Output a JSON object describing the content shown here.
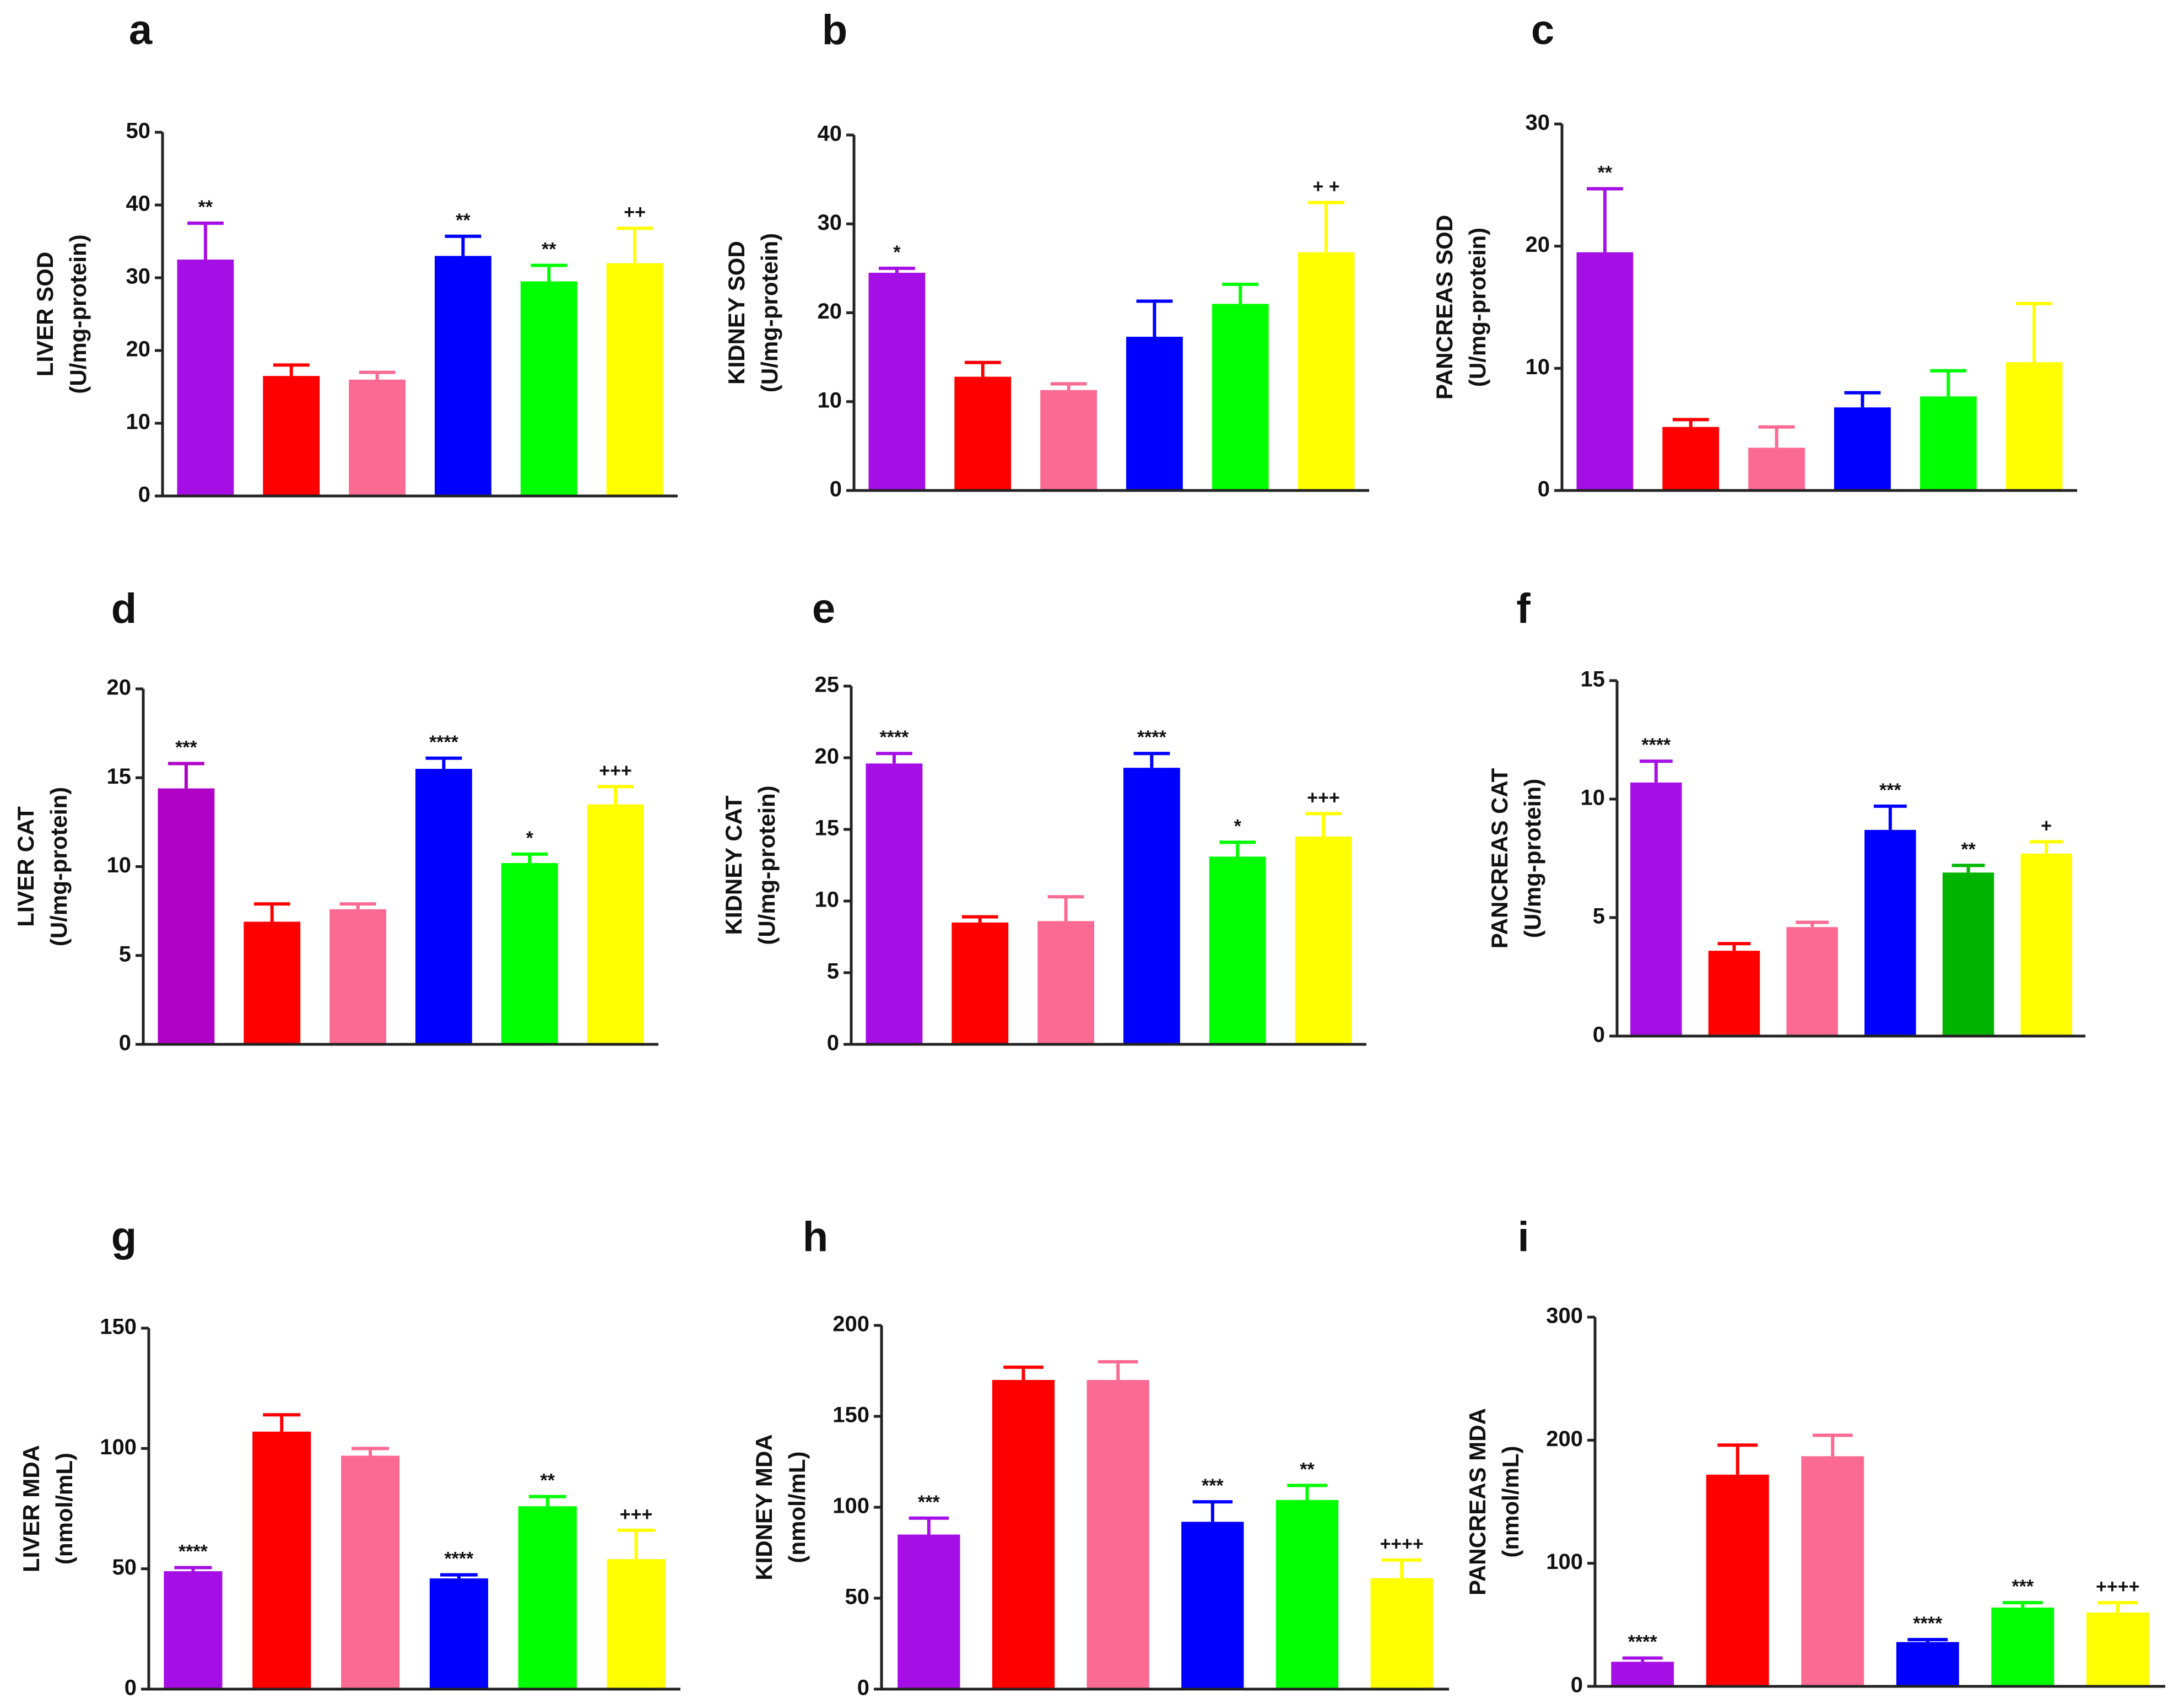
{
  "chart_data": [
    {
      "type": "bar",
      "panel": "a",
      "ylabel": [
        "LIVER SOD",
        "(U/mg-protein)"
      ],
      "ylim": [
        0,
        50
      ],
      "yticks": [
        0,
        10,
        20,
        30,
        40,
        50
      ],
      "values": [
        32.5,
        16.5,
        16.0,
        33.0,
        29.5,
        32.0
      ],
      "errors": [
        5.0,
        1.5,
        1.0,
        2.7,
        2.2,
        4.8
      ],
      "colors": [
        "#a60ee6",
        "#ff0000",
        "#fb6a93",
        "#0000ff",
        "#00ff00",
        "#ffff00"
      ],
      "annotations": [
        "**",
        "",
        "",
        "**",
        "**",
        "++"
      ]
    },
    {
      "type": "bar",
      "panel": "b",
      "ylabel": [
        "KIDNEY SOD",
        "(U/mg-protein)"
      ],
      "ylim": [
        0,
        40
      ],
      "yticks": [
        0,
        10,
        20,
        30,
        40
      ],
      "values": [
        24.5,
        12.8,
        11.3,
        17.3,
        21.0,
        26.8
      ],
      "errors": [
        0.5,
        1.6,
        0.7,
        4.0,
        2.2,
        5.6
      ],
      "colors": [
        "#a60ee6",
        "#ff0000",
        "#fb6a93",
        "#0000ff",
        "#00ff00",
        "#ffff00"
      ],
      "annotations": [
        "*",
        "",
        "",
        "",
        "",
        "+ +"
      ]
    },
    {
      "type": "bar",
      "panel": "c",
      "ylabel": [
        "PANCREAS SOD",
        "(U/mg-protein)"
      ],
      "ylim": [
        0,
        30
      ],
      "yticks": [
        0,
        10,
        20,
        30
      ],
      "values": [
        19.5,
        5.2,
        3.5,
        6.8,
        7.7,
        10.5
      ],
      "errors": [
        5.2,
        0.6,
        1.7,
        1.2,
        2.1,
        4.8
      ],
      "colors": [
        "#a60ee6",
        "#ff0000",
        "#fb6a93",
        "#0000ff",
        "#00ff00",
        "#ffff00"
      ],
      "annotations": [
        "**",
        "",
        "",
        "",
        "",
        ""
      ]
    },
    {
      "type": "bar",
      "panel": "d",
      "ylabel": [
        "LIVER CAT",
        "(U/mg-protein)"
      ],
      "ylim": [
        0,
        20
      ],
      "yticks": [
        0,
        5,
        10,
        15,
        20
      ],
      "values": [
        14.4,
        6.9,
        7.6,
        15.5,
        10.2,
        13.5
      ],
      "errors": [
        1.4,
        1.0,
        0.3,
        0.6,
        0.5,
        1.0
      ],
      "colors": [
        "#b000c8",
        "#ff0000",
        "#fb6a93",
        "#0000ff",
        "#00ff00",
        "#ffff00"
      ],
      "annotations": [
        "***",
        "",
        "",
        "****",
        "*",
        "+++"
      ]
    },
    {
      "type": "bar",
      "panel": "e",
      "ylabel": [
        "KIDNEY CAT",
        "(U/mg-protein)"
      ],
      "ylim": [
        0,
        25
      ],
      "yticks": [
        0,
        5,
        10,
        15,
        20,
        25
      ],
      "values": [
        19.6,
        8.5,
        8.6,
        19.3,
        13.1,
        14.5
      ],
      "errors": [
        0.7,
        0.4,
        1.7,
        1.0,
        1.0,
        1.6
      ],
      "colors": [
        "#a60ee6",
        "#ff0000",
        "#fb6a93",
        "#0000ff",
        "#00ff00",
        "#ffff00"
      ],
      "annotations": [
        "****",
        "",
        "",
        "****",
        "*",
        "+++"
      ]
    },
    {
      "type": "bar",
      "panel": "f",
      "ylabel": [
        "PANCREAS CAT",
        "(U/mg-protein)"
      ],
      "ylim": [
        0,
        15
      ],
      "yticks": [
        0,
        5,
        10,
        15
      ],
      "values": [
        10.7,
        3.6,
        4.6,
        8.7,
        6.9,
        7.7
      ],
      "errors": [
        0.9,
        0.3,
        0.2,
        1.0,
        0.3,
        0.5
      ],
      "colors": [
        "#a60ee6",
        "#ff0000",
        "#fb6a93",
        "#0000ff",
        "#00b400",
        "#ffff00"
      ],
      "annotations": [
        "****",
        "",
        "",
        "***",
        "**",
        "+"
      ]
    },
    {
      "type": "bar",
      "panel": "g",
      "ylabel": [
        "LIVER MDA",
        "(nmol/mL)"
      ],
      "ylim": [
        0,
        150
      ],
      "yticks": [
        0,
        50,
        100,
        150
      ],
      "values": [
        49,
        107,
        97,
        46,
        76,
        54
      ],
      "errors": [
        1.5,
        7,
        3,
        1.5,
        4,
        12
      ],
      "colors": [
        "#a60ee6",
        "#ff0000",
        "#fb6a93",
        "#0000ff",
        "#00ff00",
        "#ffff00"
      ],
      "annotations": [
        "****",
        "",
        "",
        "****",
        "**",
        "+++"
      ]
    },
    {
      "type": "bar",
      "panel": "h",
      "ylabel": [
        "KIDNEY MDA",
        "(nmol/mL)"
      ],
      "ylim": [
        0,
        200
      ],
      "yticks": [
        0,
        50,
        100,
        150,
        200
      ],
      "values": [
        85,
        170,
        170,
        92,
        104,
        61
      ],
      "errors": [
        9,
        7,
        10,
        11,
        8,
        10
      ],
      "colors": [
        "#a60ee6",
        "#ff0000",
        "#fb6a93",
        "#0000ff",
        "#00ff00",
        "#ffff00"
      ],
      "annotations": [
        "***",
        "",
        "",
        "***",
        "**",
        "++++"
      ]
    },
    {
      "type": "bar",
      "panel": "i",
      "ylabel": [
        "PANCREAS MDA",
        "(nmol/mL)"
      ],
      "ylim": [
        0,
        300
      ],
      "yticks": [
        0,
        100,
        200,
        300
      ],
      "values": [
        20,
        172,
        187,
        36,
        64,
        60
      ],
      "errors": [
        3,
        24,
        17,
        2,
        4,
        8
      ],
      "colors": [
        "#a60ee6",
        "#ff0000",
        "#fb6a93",
        "#0000ff",
        "#00ff00",
        "#ffff00"
      ],
      "annotations": [
        "****",
        "",
        "",
        "****",
        "***",
        "++++"
      ]
    }
  ]
}
